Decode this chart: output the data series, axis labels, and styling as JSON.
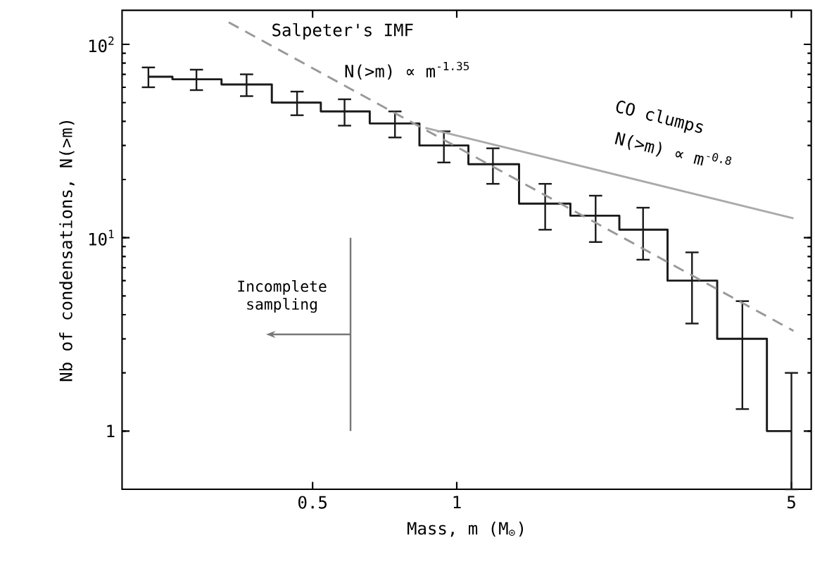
{
  "chart_data": {
    "type": "step",
    "xlabel": "Mass, m (M$_{⊙}$)",
    "ylabel": "Nb of condensations, N(>m)",
    "log": "xy",
    "grid": false,
    "xlim": [
      0.2,
      5.5
    ],
    "ylim": [
      0.5,
      150
    ],
    "xticks": [
      0.5,
      1,
      5
    ],
    "yticks": [
      1,
      {
        "value": 10,
        "label": "10$^{1}$"
      },
      {
        "value": 100,
        "label": "10$^{2}$"
      }
    ],
    "series": [
      {
        "color": "#1a1a1a",
        "x": [
          0.227,
          0.286,
          0.364,
          0.464,
          0.583,
          0.743,
          0.94,
          1.19,
          1.53,
          1.95,
          2.45,
          3.1,
          3.95,
          5.0
        ],
        "values": [
          68,
          66,
          62,
          50,
          45,
          39,
          30,
          24,
          15,
          13,
          11,
          6,
          3,
          1
        ],
        "errors": [
          8,
          8,
          8,
          7,
          7,
          6,
          5.5,
          5,
          4,
          3.5,
          3.3,
          2.4,
          1.7,
          [
            0.5,
            2
          ]
        ]
      },
      {
        "type": "line",
        "color": "#999999",
        "line_style": "dashed",
        "x": [
          0.334,
          5.05
        ],
        "values": [
          130,
          3.3
        ]
      },
      {
        "type": "line",
        "color": "#aaaaaa",
        "line_style": "solid",
        "x": [
          0.86,
          5.05
        ],
        "values": [
          37,
          12.6
        ]
      }
    ],
    "ref_lines": [
      {
        "axis": "x",
        "value": 0.6,
        "label": "Incomplete sampling",
        "color": "#777777"
      }
    ],
    "annotations": [
      "Salpeter's IMF",
      "N(>m) ∝ m$^{-1.35}$",
      "CO clumps",
      "N(>m) ∝ m$^{-0.8}$"
    ]
  }
}
